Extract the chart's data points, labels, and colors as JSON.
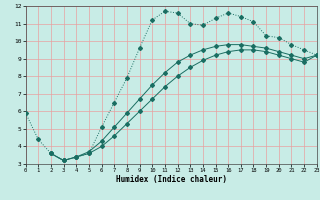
{
  "title": "",
  "xlabel": "Humidex (Indice chaleur)",
  "xlim": [
    0,
    23
  ],
  "ylim": [
    3,
    12
  ],
  "yticks": [
    3,
    4,
    5,
    6,
    7,
    8,
    9,
    10,
    11,
    12
  ],
  "xticks": [
    0,
    1,
    2,
    3,
    4,
    5,
    6,
    7,
    8,
    9,
    10,
    11,
    12,
    13,
    14,
    15,
    16,
    17,
    18,
    19,
    20,
    21,
    22,
    23
  ],
  "bg_color": "#c8ece6",
  "grid_color": "#e8a0a0",
  "line_color": "#1a6e62",
  "line1_x": [
    0,
    1,
    2,
    3,
    4,
    5,
    6,
    7,
    8,
    9,
    10,
    11,
    12,
    13,
    14,
    15,
    16,
    17,
    18,
    19,
    20,
    21,
    22,
    23
  ],
  "line1_y": [
    5.9,
    4.4,
    3.6,
    3.2,
    3.4,
    3.6,
    5.1,
    6.5,
    7.9,
    9.6,
    11.2,
    11.7,
    11.6,
    11.0,
    10.9,
    11.3,
    11.6,
    11.4,
    11.1,
    10.3,
    10.2,
    9.8,
    9.5,
    9.2
  ],
  "line2_x": [
    2,
    3,
    4,
    5,
    6,
    7,
    8,
    9,
    10,
    11,
    12,
    13,
    14,
    15,
    16,
    17,
    18,
    19,
    20,
    21,
    22,
    23
  ],
  "line2_y": [
    3.6,
    3.2,
    3.4,
    3.6,
    4.0,
    4.6,
    5.3,
    6.0,
    6.7,
    7.4,
    8.0,
    8.5,
    8.9,
    9.2,
    9.4,
    9.5,
    9.5,
    9.4,
    9.2,
    9.0,
    8.8,
    9.2
  ],
  "line3_x": [
    2,
    3,
    4,
    5,
    6,
    7,
    8,
    9,
    10,
    11,
    12,
    13,
    14,
    15,
    16,
    17,
    18,
    19,
    20,
    21,
    22,
    23
  ],
  "line3_y": [
    3.6,
    3.2,
    3.4,
    3.7,
    4.3,
    5.1,
    5.9,
    6.7,
    7.5,
    8.2,
    8.8,
    9.2,
    9.5,
    9.7,
    9.8,
    9.8,
    9.7,
    9.6,
    9.4,
    9.2,
    9.0,
    9.2
  ]
}
